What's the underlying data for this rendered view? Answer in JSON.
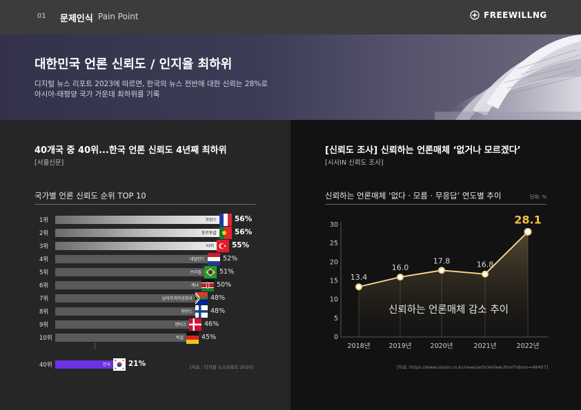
{
  "header": {
    "page_num": "01",
    "section": "문제인식",
    "subtitle": "Pain Point",
    "brand": "FREEWILLNG",
    "brand_icon": "compass-icon"
  },
  "hero": {
    "title": "대한민국 언론 신뢰도 / 인지율 최하위",
    "desc_line1": "디지털 뉴스 리포트 2023에 따르면, 한국의 뉴스 전반에 대한 신뢰는 28%로",
    "desc_line2": "아시아-태평양 국가 가운데 최하위를 기록"
  },
  "left": {
    "title": "40개국 중 40위...한국 언론 신뢰도 4년째 최하위",
    "source": "[서울신문]",
    "chart_title": "국가별 언론 신뢰도 순위 TOP 10",
    "footnote": "[자료 : 디지털 뉴스리포트 2020]",
    "ellipsis": "⋮"
  },
  "right": {
    "title": "[신뢰도 조사] 신뢰하는 언론매체 ‘없거나 모르겠다’",
    "source": "[시사IN 신뢰도 조사]",
    "chart_title": "신뢰하는 언론매체 ‘없다 · 모름 · 무응답’ 연도별 추이",
    "unit": "단위: %",
    "overlay": "신뢰하는 언론매체 감소 추이",
    "footnote": "[자료 :https://www.sisain.co.kr/news/articleView.html?idxno=48407]"
  },
  "chart_data": [
    {
      "type": "bar",
      "title": "국가별 언론 신뢰도 순위 TOP 10",
      "categories": [
        "프랑스",
        "포르투갈",
        "터키",
        "네덜란드",
        "브라질",
        "케냐",
        "남아프리카공화국",
        "핀란드",
        "덴마크",
        "독일",
        "한국"
      ],
      "ranks": [
        "1위",
        "2위",
        "3위",
        "4위",
        "5위",
        "6위",
        "7위",
        "8위",
        "9위",
        "10위",
        "40위"
      ],
      "values": [
        56,
        56,
        55,
        52,
        51,
        50,
        48,
        48,
        46,
        45,
        21
      ],
      "value_labels": [
        "56%",
        "56%",
        "55%",
        "52%",
        "51%",
        "50%",
        "48%",
        "48%",
        "46%",
        "45%",
        "21%"
      ],
      "flags": [
        "france-flag",
        "portugal-flag",
        "turkey-flag",
        "netherlands-flag",
        "brazil-flag",
        "kenya-flag",
        "south-africa-flag",
        "finland-flag",
        "denmark-flag",
        "germany-flag",
        "korea-flag"
      ],
      "colors": {
        "top3": "#e8e8e8",
        "rest": "#5a5a5a",
        "korea": "#6a32e0"
      }
    },
    {
      "type": "line",
      "title": "신뢰하는 언론매체 ‘없다 · 모름 · 무응답’ 연도별 추이",
      "x": [
        "2018년",
        "2019년",
        "2020년",
        "2021년",
        "2022년"
      ],
      "values": [
        13.4,
        16.0,
        17.8,
        16.8,
        28.1
      ],
      "value_labels": [
        "13.4",
        "16.0",
        "17.8",
        "16.8",
        "28.1"
      ],
      "yticks": [
        "0",
        "5",
        "10",
        "15",
        "20",
        "25",
        "30"
      ],
      "ylim": [
        0,
        30
      ],
      "color": "#f2d28a",
      "highlight_color": "#f0c04a"
    }
  ]
}
